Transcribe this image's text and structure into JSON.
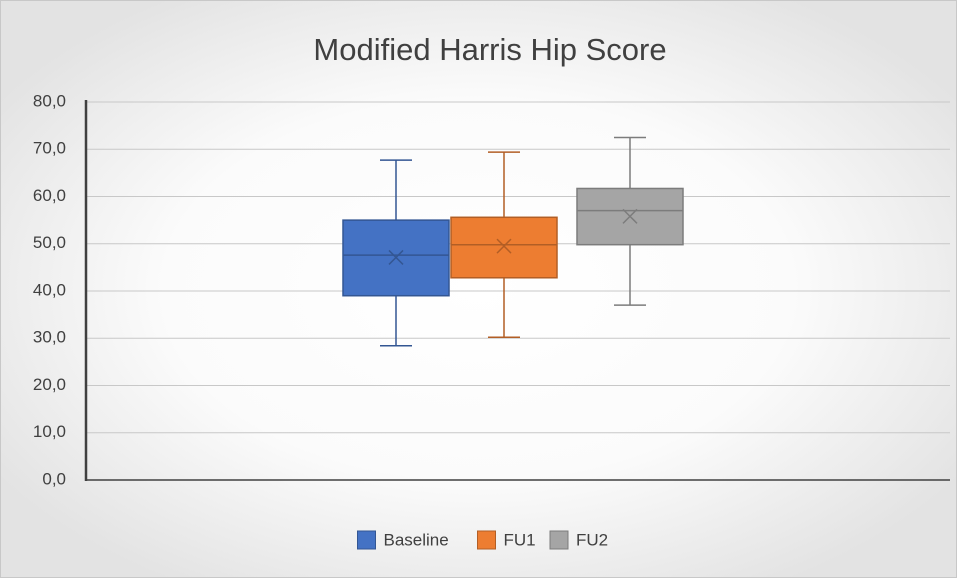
{
  "chart_data": {
    "type": "box",
    "title": "Modified Harris Hip Score",
    "series": [
      {
        "name": "Baseline",
        "color": "#4472c4",
        "min": 28.4,
        "q1": 39.0,
        "median": 47.6,
        "q3": 55.0,
        "max": 67.7,
        "mean": 47.1
      },
      {
        "name": "FU1",
        "color": "#ed7d31",
        "min": 30.2,
        "q1": 42.8,
        "median": 49.8,
        "q3": 55.6,
        "max": 69.4,
        "mean": 49.5
      },
      {
        "name": "FU2",
        "color": "#a5a5a5",
        "min": 37.0,
        "q1": 49.8,
        "median": 57.0,
        "q3": 61.7,
        "max": 72.5,
        "mean": 55.8
      }
    ],
    "ylim": [
      0,
      80
    ],
    "yticks": [
      {
        "value": 0,
        "label": "0,0"
      },
      {
        "value": 10,
        "label": "10,0"
      },
      {
        "value": 20,
        "label": "20,0"
      },
      {
        "value": 30,
        "label": "30,0"
      },
      {
        "value": 40,
        "label": "40,0"
      },
      {
        "value": 50,
        "label": "50,0"
      },
      {
        "value": 60,
        "label": "60,0"
      },
      {
        "value": 70,
        "label": "70,0"
      },
      {
        "value": 80,
        "label": "80,0"
      }
    ],
    "grid": true,
    "legend": "bottom"
  }
}
